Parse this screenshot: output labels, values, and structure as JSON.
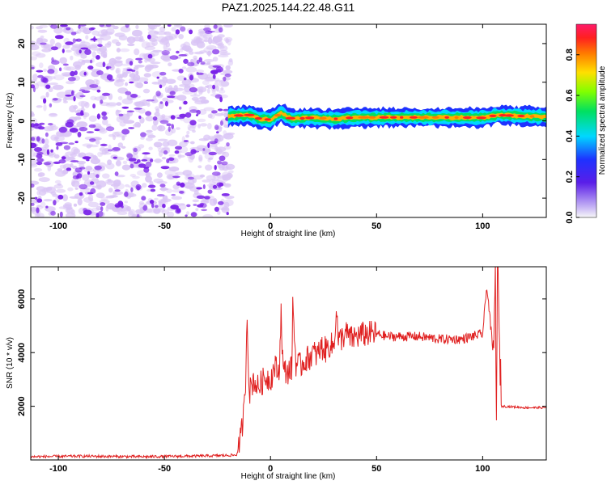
{
  "page_title": "PAZ1.2025.144.22.48.G11",
  "colors": {
    "snr_line": "#e02020",
    "scatter_primary": "#7a22e8",
    "scatter_light": "#d9c4f5",
    "colorbar": [
      "#f8f8f8",
      "#c9b8f5",
      "#5a1ee8",
      "#1e32ff",
      "#00d8ff",
      "#00e060",
      "#80ff00",
      "#ffe000",
      "#ff7a00",
      "#ff2020",
      "#ff1a6a"
    ]
  },
  "chart_data": [
    {
      "type": "heatmap",
      "title": "PAZ1.2025.144.22.48.G11",
      "xlabel": "Height of straight line (km)",
      "ylabel": "Frequency (Hz)",
      "xlim": [
        -113,
        130
      ],
      "ylim": [
        -25,
        25
      ],
      "xticks": [
        -100,
        -50,
        0,
        50,
        100
      ],
      "yticks": [
        -20,
        -10,
        0,
        10,
        20
      ],
      "colorbar": {
        "label": "Normalized spectral amplitude",
        "range": [
          0.0,
          0.95
        ],
        "ticks": [
          0.0,
          0.2,
          0.4,
          0.6,
          0.8
        ]
      },
      "noise_region_x": [
        -113,
        -20
      ],
      "signal_center_freq_hz": [
        {
          "x": -19,
          "f": 1.3
        },
        {
          "x": -10,
          "f": 1.5
        },
        {
          "x": -5,
          "f": 0.5
        },
        {
          "x": 0,
          "f": 0.3
        },
        {
          "x": 5,
          "f": 2.0
        },
        {
          "x": 10,
          "f": 0.5
        },
        {
          "x": 20,
          "f": 0.8
        },
        {
          "x": 30,
          "f": 0.5
        },
        {
          "x": 40,
          "f": 0.9
        },
        {
          "x": 60,
          "f": 0.9
        },
        {
          "x": 80,
          "f": 0.9
        },
        {
          "x": 100,
          "f": 0.8
        },
        {
          "x": 107,
          "f": 1.5
        },
        {
          "x": 130,
          "f": 1.0
        }
      ]
    },
    {
      "type": "line",
      "xlabel": "Height of straight line (km)",
      "ylabel": "SNR (10 * v/v)",
      "xlim": [
        -113,
        130
      ],
      "ylim": [
        0,
        7200
      ],
      "xticks": [
        -100,
        -50,
        0,
        50,
        100
      ],
      "yticks": [
        2000,
        4000,
        6000
      ],
      "series": [
        {
          "x": [
            -113,
            -90,
            -60,
            -30,
            -16,
            -14,
            -12,
            -11,
            -10,
            -8,
            -6,
            -4,
            -2,
            0,
            2,
            4,
            5,
            6,
            8,
            10,
            10.5,
            12,
            14,
            16,
            18,
            20,
            22,
            24,
            26,
            28,
            30,
            31,
            32,
            34,
            36,
            38,
            40,
            45,
            50,
            55,
            60,
            70,
            80,
            90,
            95,
            100,
            102,
            104,
            105,
            106,
            106.5,
            107,
            108,
            109,
            110,
            120,
            130
          ],
          "y": [
            120,
            140,
            120,
            150,
            180,
            800,
            2200,
            5500,
            2500,
            3000,
            2700,
            2900,
            3100,
            3000,
            3500,
            3200,
            5500,
            3300,
            3300,
            3400,
            5800,
            3600,
            3500,
            3700,
            3800,
            4000,
            3900,
            4200,
            4100,
            4300,
            4200,
            5800,
            4400,
            4600,
            4700,
            4500,
            4600,
            4700,
            4700,
            4600,
            4600,
            4600,
            4500,
            4500,
            4600,
            4700,
            6500,
            4800,
            3800,
            6800,
            2000,
            7300,
            4000,
            2000,
            2000,
            1950,
            1950
          ]
        }
      ]
    }
  ]
}
